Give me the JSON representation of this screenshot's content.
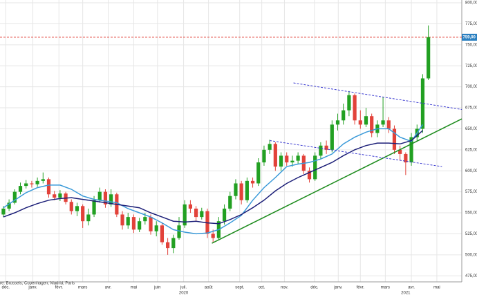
{
  "chart_data": {
    "type": "candlestick",
    "source": "re: Brussels, Copenhagen, Madrid, Paris",
    "xlim": [
      -0.6,
      80.9
    ],
    "ylim": [
      467.8,
      803.3
    ],
    "grid": true,
    "up_color": "#22a022",
    "down_color": "#e2423a",
    "yticks": [
      {
        "value": 475,
        "label": "475,00"
      },
      {
        "value": 500,
        "label": "500,00"
      },
      {
        "value": 525,
        "label": "525,00"
      },
      {
        "value": 550,
        "label": "550,00"
      },
      {
        "value": 575,
        "label": "575,00"
      },
      {
        "value": 600,
        "label": "600,00"
      },
      {
        "value": 625,
        "label": "625,00"
      },
      {
        "value": 650,
        "label": "650,00"
      },
      {
        "value": 675,
        "label": "675,00"
      },
      {
        "value": 700,
        "label": "700,00"
      },
      {
        "value": 725,
        "label": "725,00"
      },
      {
        "value": 750,
        "label": "750,00"
      },
      {
        "value": 775,
        "label": "775,00"
      },
      {
        "value": 800,
        "label": "800,00"
      }
    ],
    "xticks": [
      {
        "value": 0.4,
        "label": "déc."
      },
      {
        "value": 5.2,
        "label": "janv."
      },
      {
        "value": 9.8,
        "label": "févr."
      },
      {
        "value": 14,
        "label": "mars"
      },
      {
        "value": 18.5,
        "label": "avr."
      },
      {
        "value": 23,
        "label": "mai"
      },
      {
        "value": 27.2,
        "label": "juin"
      },
      {
        "value": 31.8,
        "label": "juil."
      },
      {
        "value": 36.2,
        "label": "août"
      },
      {
        "value": 41.7,
        "label": "sept."
      },
      {
        "value": 45.6,
        "label": "oct."
      },
      {
        "value": 49.6,
        "label": "nov."
      },
      {
        "value": 54.9,
        "label": "déc."
      },
      {
        "value": 59.1,
        "label": "janv."
      },
      {
        "value": 63,
        "label": "févr."
      },
      {
        "value": 67.4,
        "label": "mars"
      },
      {
        "value": 72,
        "label": "avr."
      },
      {
        "value": 76.5,
        "label": "mai"
      }
    ],
    "year_labels": [
      {
        "value": 31.8,
        "label": "2020"
      },
      {
        "value": 71,
        "label": "2021"
      }
    ],
    "open": [
      548,
      555,
      562,
      575,
      582,
      585,
      584,
      588,
      590,
      572,
      568,
      573,
      563,
      552,
      558,
      540,
      548,
      565,
      575,
      560,
      572,
      548,
      535,
      545,
      530,
      540,
      545,
      528,
      535,
      515,
      508,
      520,
      535,
      560,
      555,
      545,
      552,
      525,
      520,
      540,
      555,
      570,
      585,
      565,
      588,
      585,
      610,
      625,
      632,
      605,
      618,
      610,
      612,
      618,
      600,
      590,
      618,
      630,
      625,
      655,
      660,
      672,
      690,
      660,
      655,
      665,
      645,
      655,
      660,
      650,
      625,
      620,
      610,
      640,
      650,
      710
    ],
    "high": [
      558,
      566,
      578,
      586,
      589,
      588,
      592,
      598,
      592,
      576,
      577,
      575,
      566,
      562,
      560,
      555,
      570,
      580,
      578,
      578,
      574,
      552,
      550,
      548,
      544,
      550,
      548,
      540,
      538,
      520,
      524,
      545,
      565,
      565,
      558,
      556,
      555,
      530,
      545,
      560,
      575,
      590,
      588,
      592,
      592,
      615,
      630,
      637,
      634,
      622,
      622,
      618,
      622,
      620,
      604,
      622,
      634,
      636,
      660,
      668,
      680,
      695,
      692,
      672,
      675,
      668,
      660,
      688,
      664,
      654,
      630,
      622,
      645,
      655,
      715,
      773
    ],
    "low": [
      545,
      552,
      560,
      572,
      579,
      580,
      581,
      585,
      568,
      565,
      564,
      560,
      548,
      546,
      532,
      535,
      545,
      562,
      556,
      557,
      545,
      530,
      531,
      526,
      527,
      536,
      524,
      522,
      512,
      500,
      502,
      518,
      532,
      550,
      540,
      542,
      520,
      515,
      518,
      536,
      552,
      566,
      560,
      562,
      580,
      582,
      606,
      620,
      600,
      600,
      606,
      605,
      608,
      596,
      586,
      588,
      614,
      620,
      622,
      648,
      655,
      665,
      655,
      650,
      652,
      640,
      640,
      652,
      645,
      620,
      612,
      595,
      606,
      636,
      645,
      708
    ],
    "close": [
      555,
      562,
      575,
      582,
      585,
      584,
      588,
      590,
      572,
      568,
      573,
      563,
      552,
      558,
      540,
      548,
      565,
      575,
      560,
      572,
      548,
      535,
      545,
      530,
      540,
      545,
      528,
      535,
      515,
      508,
      520,
      535,
      560,
      555,
      545,
      552,
      525,
      520,
      540,
      555,
      570,
      585,
      565,
      588,
      585,
      610,
      625,
      632,
      605,
      618,
      610,
      612,
      618,
      600,
      590,
      618,
      630,
      625,
      655,
      660,
      672,
      690,
      660,
      655,
      665,
      645,
      655,
      660,
      650,
      625,
      620,
      610,
      640,
      650,
      710,
      759
    ],
    "series": [
      {
        "color": "#3a9ad9",
        "x": [
          0,
          2,
          4,
          6,
          8,
          10,
          12,
          14,
          16,
          18,
          20,
          22,
          24,
          26,
          28,
          30,
          32,
          34,
          36,
          38,
          40,
          42,
          44,
          46,
          48,
          50,
          52,
          54,
          56,
          58,
          60,
          62,
          64,
          66,
          68,
          70,
          72,
          74
        ],
        "values": [
          556,
          565,
          574,
          580,
          583,
          583,
          578,
          570,
          566,
          564,
          562,
          555,
          550,
          545,
          538,
          530,
          527,
          525,
          526,
          530,
          538,
          547,
          565,
          580,
          592,
          605,
          608,
          610,
          614,
          620,
          632,
          640,
          646,
          650,
          650,
          640,
          635,
          655
        ]
      },
      {
        "color": "#1c1f78",
        "x": [
          0,
          2,
          4,
          6,
          8,
          10,
          12,
          14,
          16,
          18,
          20,
          22,
          24,
          26,
          28,
          30,
          32,
          34,
          36,
          38,
          40,
          42,
          44,
          46,
          48,
          50,
          52,
          54,
          56,
          58,
          60,
          62,
          64,
          66,
          68,
          70,
          72,
          74
        ],
        "values": [
          545,
          550,
          556,
          561,
          565,
          567,
          568,
          566,
          564,
          562,
          560,
          558,
          556,
          550,
          545,
          540,
          539,
          540,
          538,
          537,
          542,
          548,
          556,
          565,
          576,
          585,
          592,
          598,
          604,
          610,
          618,
          625,
          630,
          633,
          633,
          632,
          636,
          648
        ]
      }
    ],
    "trendlines": [
      {
        "color": "#1e8c1e",
        "dash": false,
        "x": [
          36.8,
          80.9
        ],
        "y": [
          513.8,
          661.8
        ]
      },
      {
        "color": "#3b3bd0",
        "dash": true,
        "x": [
          51.2,
          80.9
        ],
        "y": [
          704.6,
          673
        ]
      },
      {
        "color": "#3b3bd0",
        "dash": true,
        "x": [
          47,
          77.4
        ],
        "y": [
          636,
          605
        ]
      }
    ],
    "last_price": {
      "value": 759,
      "label": "759,00"
    }
  }
}
